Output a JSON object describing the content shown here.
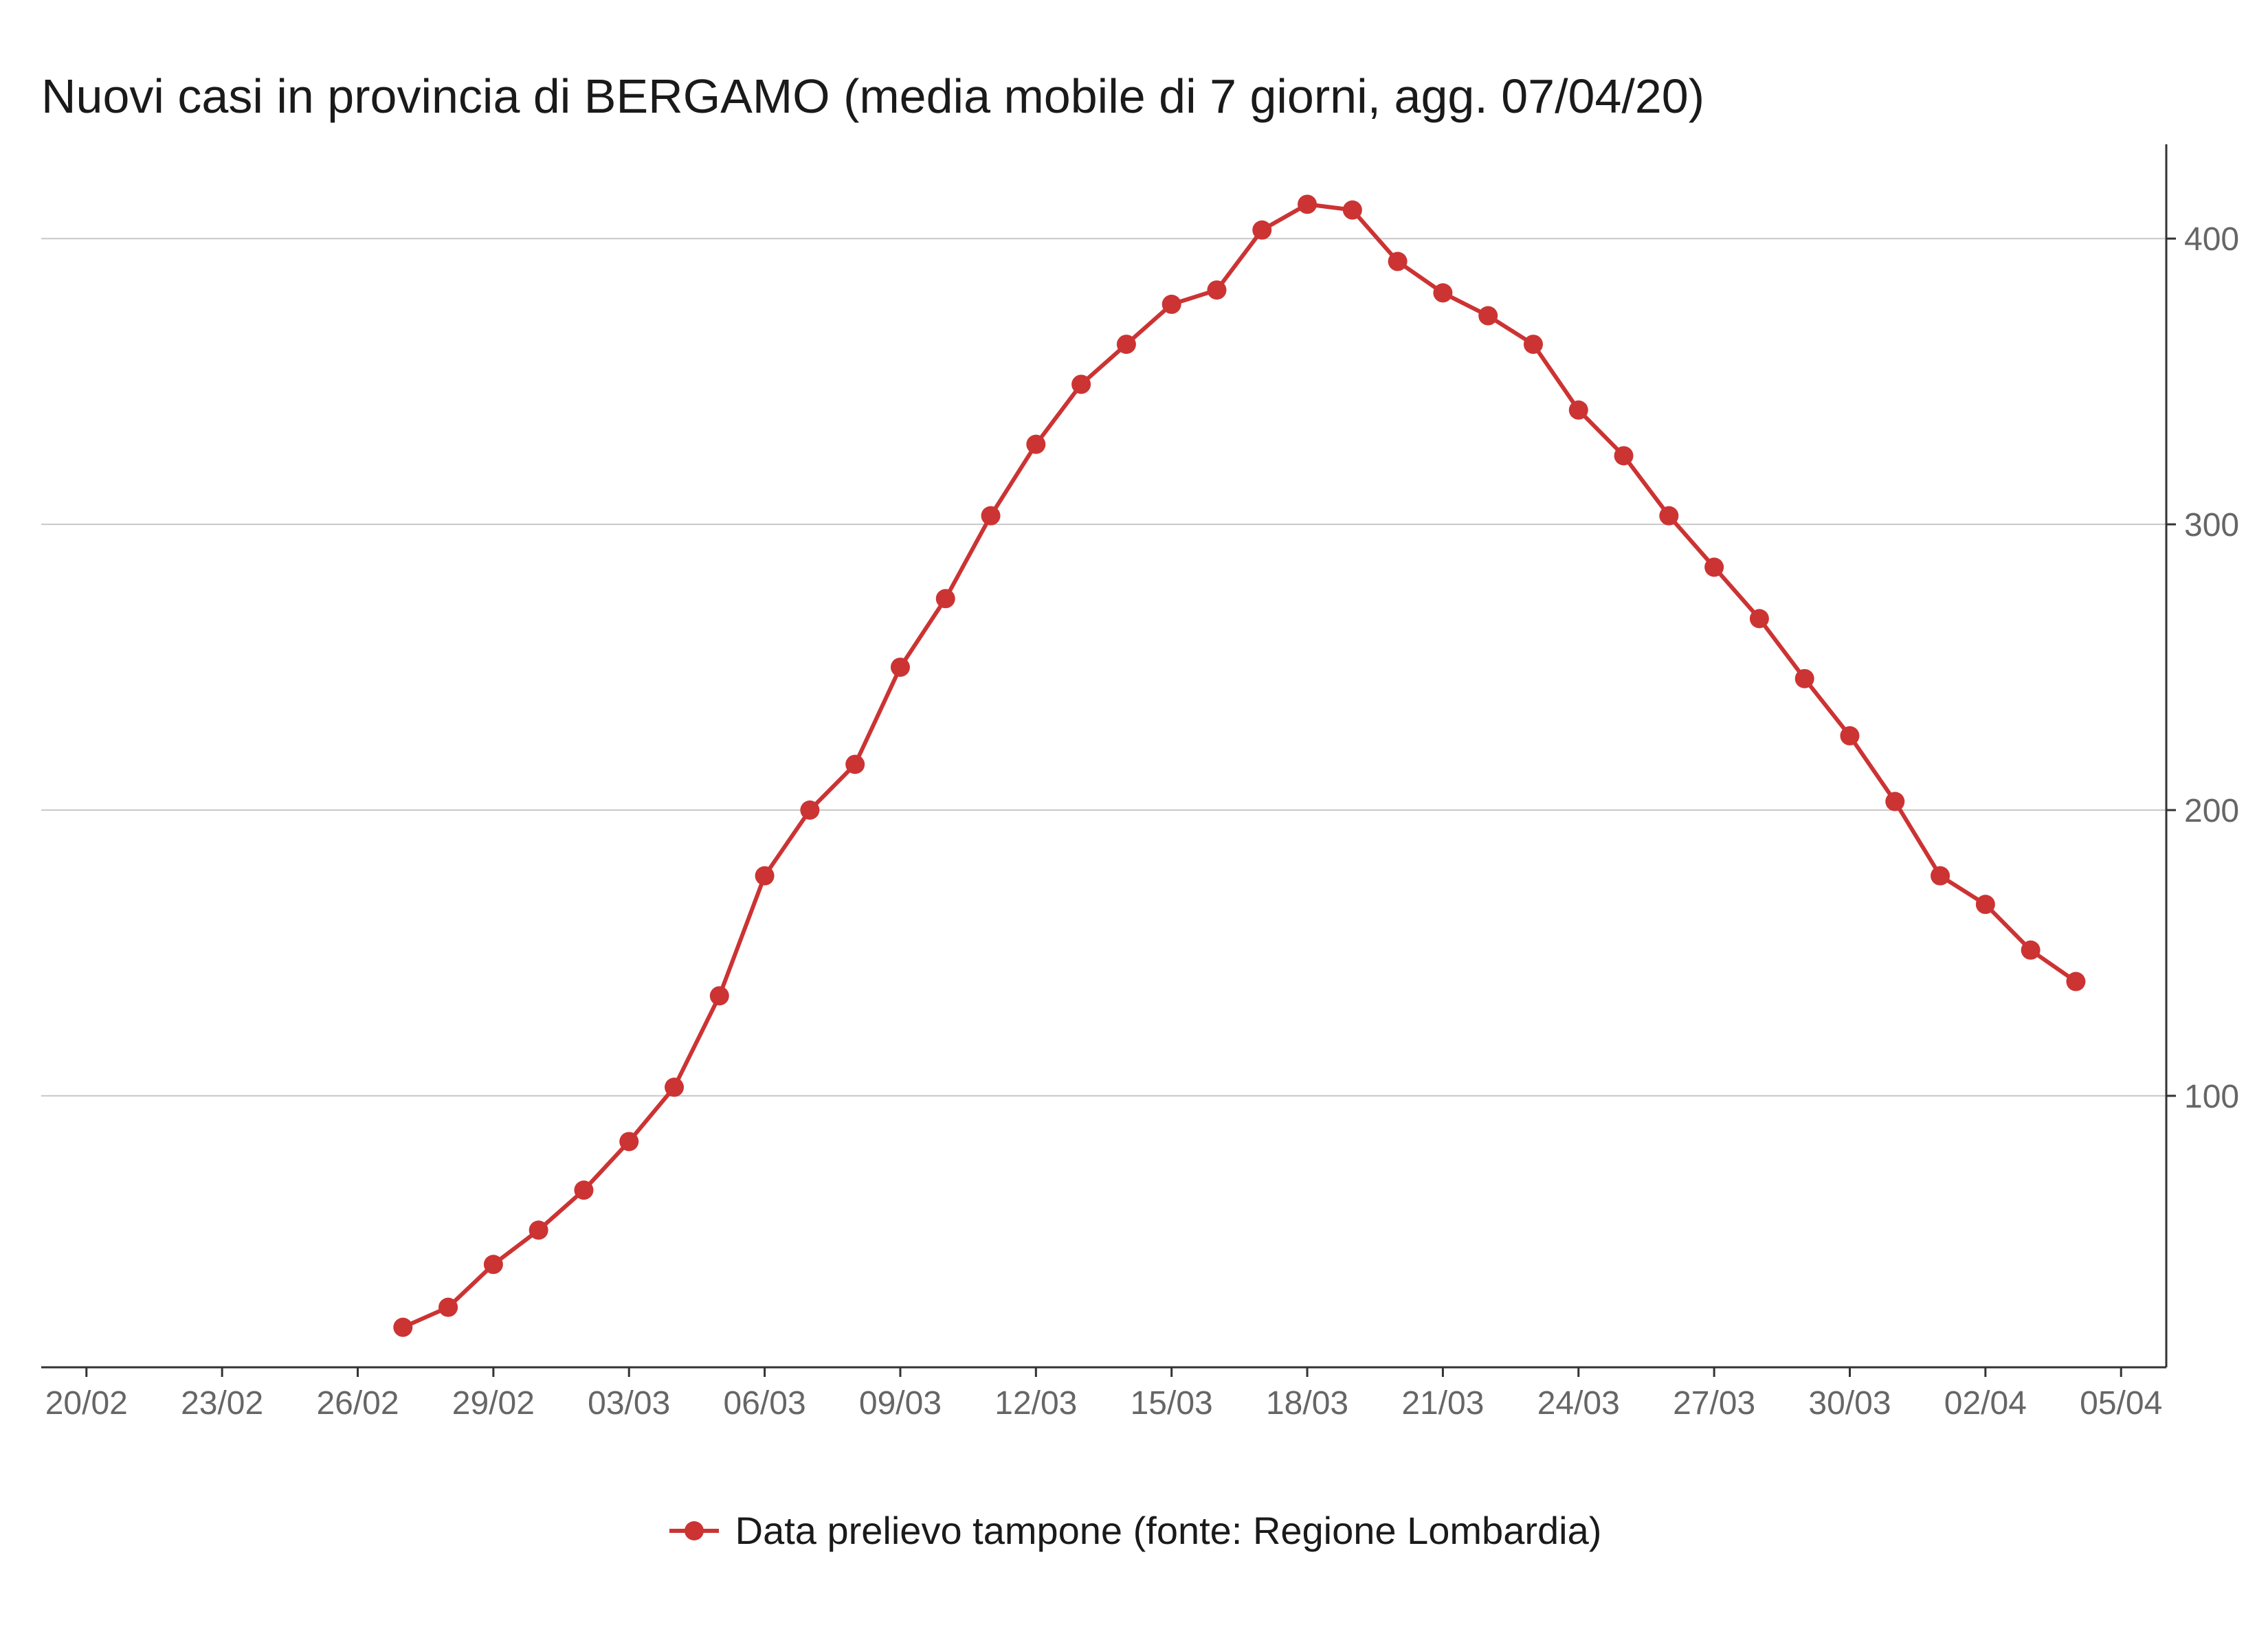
{
  "chart_data": {
    "type": "line",
    "title": "Nuovi casi in provincia di BERGAMO (media mobile di 7 giorni, agg. 07/04/20)",
    "xlabel": "",
    "ylabel": "",
    "x_ticks": [
      "20/02",
      "23/02",
      "26/02",
      "29/02",
      "03/03",
      "06/03",
      "09/03",
      "12/03",
      "15/03",
      "18/03",
      "21/03",
      "24/03",
      "27/03",
      "30/03",
      "02/04",
      "05/04"
    ],
    "y_ticks": [
      100,
      200,
      300,
      400
    ],
    "ylim": [
      5,
      433
    ],
    "xlim": [
      "19/02",
      "06/04"
    ],
    "grid": "horizontal",
    "y_axis_position": "right",
    "legend_position": "bottom",
    "series": [
      {
        "name": "Data prelievo tampone (fonte: Regione Lombardia)",
        "color": "#cc3333",
        "points": [
          {
            "x": "27/02",
            "y": 19
          },
          {
            "x": "28/02",
            "y": 26
          },
          {
            "x": "29/02",
            "y": 41
          },
          {
            "x": "01/03",
            "y": 53
          },
          {
            "x": "02/03",
            "y": 67
          },
          {
            "x": "03/03",
            "y": 84
          },
          {
            "x": "04/03",
            "y": 103
          },
          {
            "x": "05/03",
            "y": 135
          },
          {
            "x": "06/03",
            "y": 177
          },
          {
            "x": "07/03",
            "y": 200
          },
          {
            "x": "08/03",
            "y": 216
          },
          {
            "x": "09/03",
            "y": 250
          },
          {
            "x": "10/03",
            "y": 274
          },
          {
            "x": "11/03",
            "y": 303
          },
          {
            "x": "12/03",
            "y": 328
          },
          {
            "x": "13/03",
            "y": 349
          },
          {
            "x": "14/03",
            "y": 363
          },
          {
            "x": "15/03",
            "y": 377
          },
          {
            "x": "16/03",
            "y": 382
          },
          {
            "x": "17/03",
            "y": 403
          },
          {
            "x": "18/03",
            "y": 412
          },
          {
            "x": "19/03",
            "y": 410
          },
          {
            "x": "20/03",
            "y": 392
          },
          {
            "x": "21/03",
            "y": 381
          },
          {
            "x": "22/03",
            "y": 373
          },
          {
            "x": "23/03",
            "y": 363
          },
          {
            "x": "24/03",
            "y": 340
          },
          {
            "x": "25/03",
            "y": 324
          },
          {
            "x": "26/03",
            "y": 303
          },
          {
            "x": "27/03",
            "y": 285
          },
          {
            "x": "28/03",
            "y": 267
          },
          {
            "x": "29/03",
            "y": 246
          },
          {
            "x": "30/03",
            "y": 226
          },
          {
            "x": "31/03",
            "y": 203
          },
          {
            "x": "01/04",
            "y": 177
          },
          {
            "x": "02/04",
            "y": 167
          },
          {
            "x": "03/04",
            "y": 151
          },
          {
            "x": "04/04",
            "y": 140
          }
        ]
      }
    ]
  }
}
